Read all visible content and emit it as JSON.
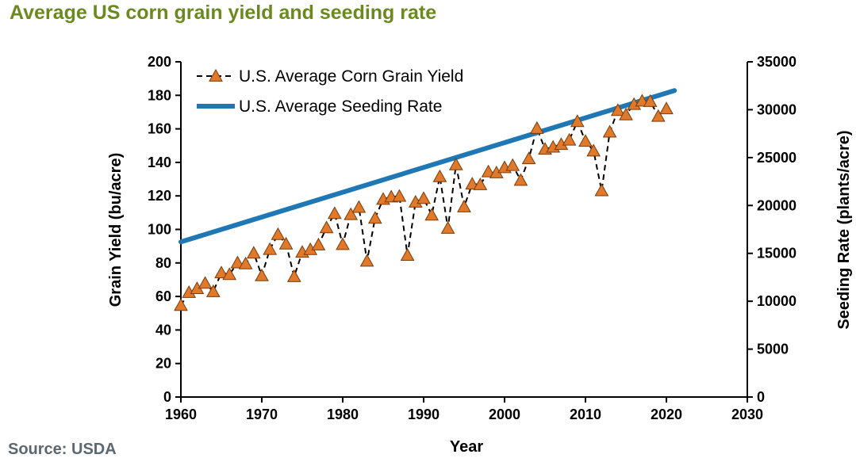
{
  "title": "Average US corn grain yield and seeding rate",
  "source": "Source: USDA",
  "chart_data": {
    "type": "line",
    "xlabel": "Year",
    "ylabel": "Grain Yield (bu/acre)",
    "y2label": "Seeding Rate (plants/acre)",
    "xlim": [
      1960,
      2030
    ],
    "ylim": [
      0,
      200
    ],
    "y2lim": [
      0,
      35000
    ],
    "x_ticks": [
      1960,
      1970,
      1980,
      1990,
      2000,
      2010,
      2020,
      2030
    ],
    "y_ticks": [
      0,
      20,
      40,
      60,
      80,
      100,
      120,
      140,
      160,
      180,
      200
    ],
    "y2_ticks": [
      0,
      5000,
      10000,
      15000,
      20000,
      25000,
      30000,
      35000
    ],
    "grid": false,
    "legend_position": "top-left",
    "series": [
      {
        "name": "U.S. Average Corn Grain Yield",
        "axis": "left",
        "style": "dashed-triangle",
        "color": "#000000",
        "marker_color": "#e07a2a",
        "x": [
          1960,
          1961,
          1962,
          1963,
          1964,
          1965,
          1966,
          1967,
          1968,
          1969,
          1970,
          1971,
          1972,
          1973,
          1974,
          1975,
          1976,
          1977,
          1978,
          1979,
          1980,
          1981,
          1982,
          1983,
          1984,
          1985,
          1986,
          1987,
          1988,
          1989,
          1990,
          1991,
          1992,
          1993,
          1994,
          1995,
          1996,
          1997,
          1998,
          1999,
          2000,
          2001,
          2002,
          2003,
          2004,
          2005,
          2006,
          2007,
          2008,
          2009,
          2010,
          2011,
          2012,
          2013,
          2014,
          2015,
          2016,
          2017,
          2018,
          2019,
          2020
        ],
        "values": [
          54.7,
          62.4,
          64.7,
          67.9,
          62.9,
          74.1,
          73.1,
          80.1,
          79.5,
          85.9,
          72.4,
          88.1,
          97.0,
          91.3,
          71.9,
          86.4,
          88.0,
          90.8,
          101.0,
          109.5,
          91.0,
          108.9,
          113.2,
          81.1,
          106.7,
          118.0,
          119.4,
          119.8,
          84.6,
          116.3,
          118.5,
          108.6,
          131.5,
          100.7,
          138.6,
          113.5,
          127.1,
          126.7,
          134.4,
          133.8,
          136.9,
          138.2,
          129.3,
          142.2,
          160.3,
          147.9,
          149.1,
          150.7,
          153.3,
          164.4,
          152.6,
          146.8,
          123.1,
          158.1,
          171.0,
          168.4,
          174.6,
          176.6,
          176.4,
          167.5,
          172.0
        ]
      },
      {
        "name": "U.S. Average Seeding Rate",
        "axis": "right",
        "style": "solid",
        "color": "#1f77b4",
        "x": [
          1960,
          2021
        ],
        "values": [
          16200,
          32000
        ]
      }
    ]
  }
}
